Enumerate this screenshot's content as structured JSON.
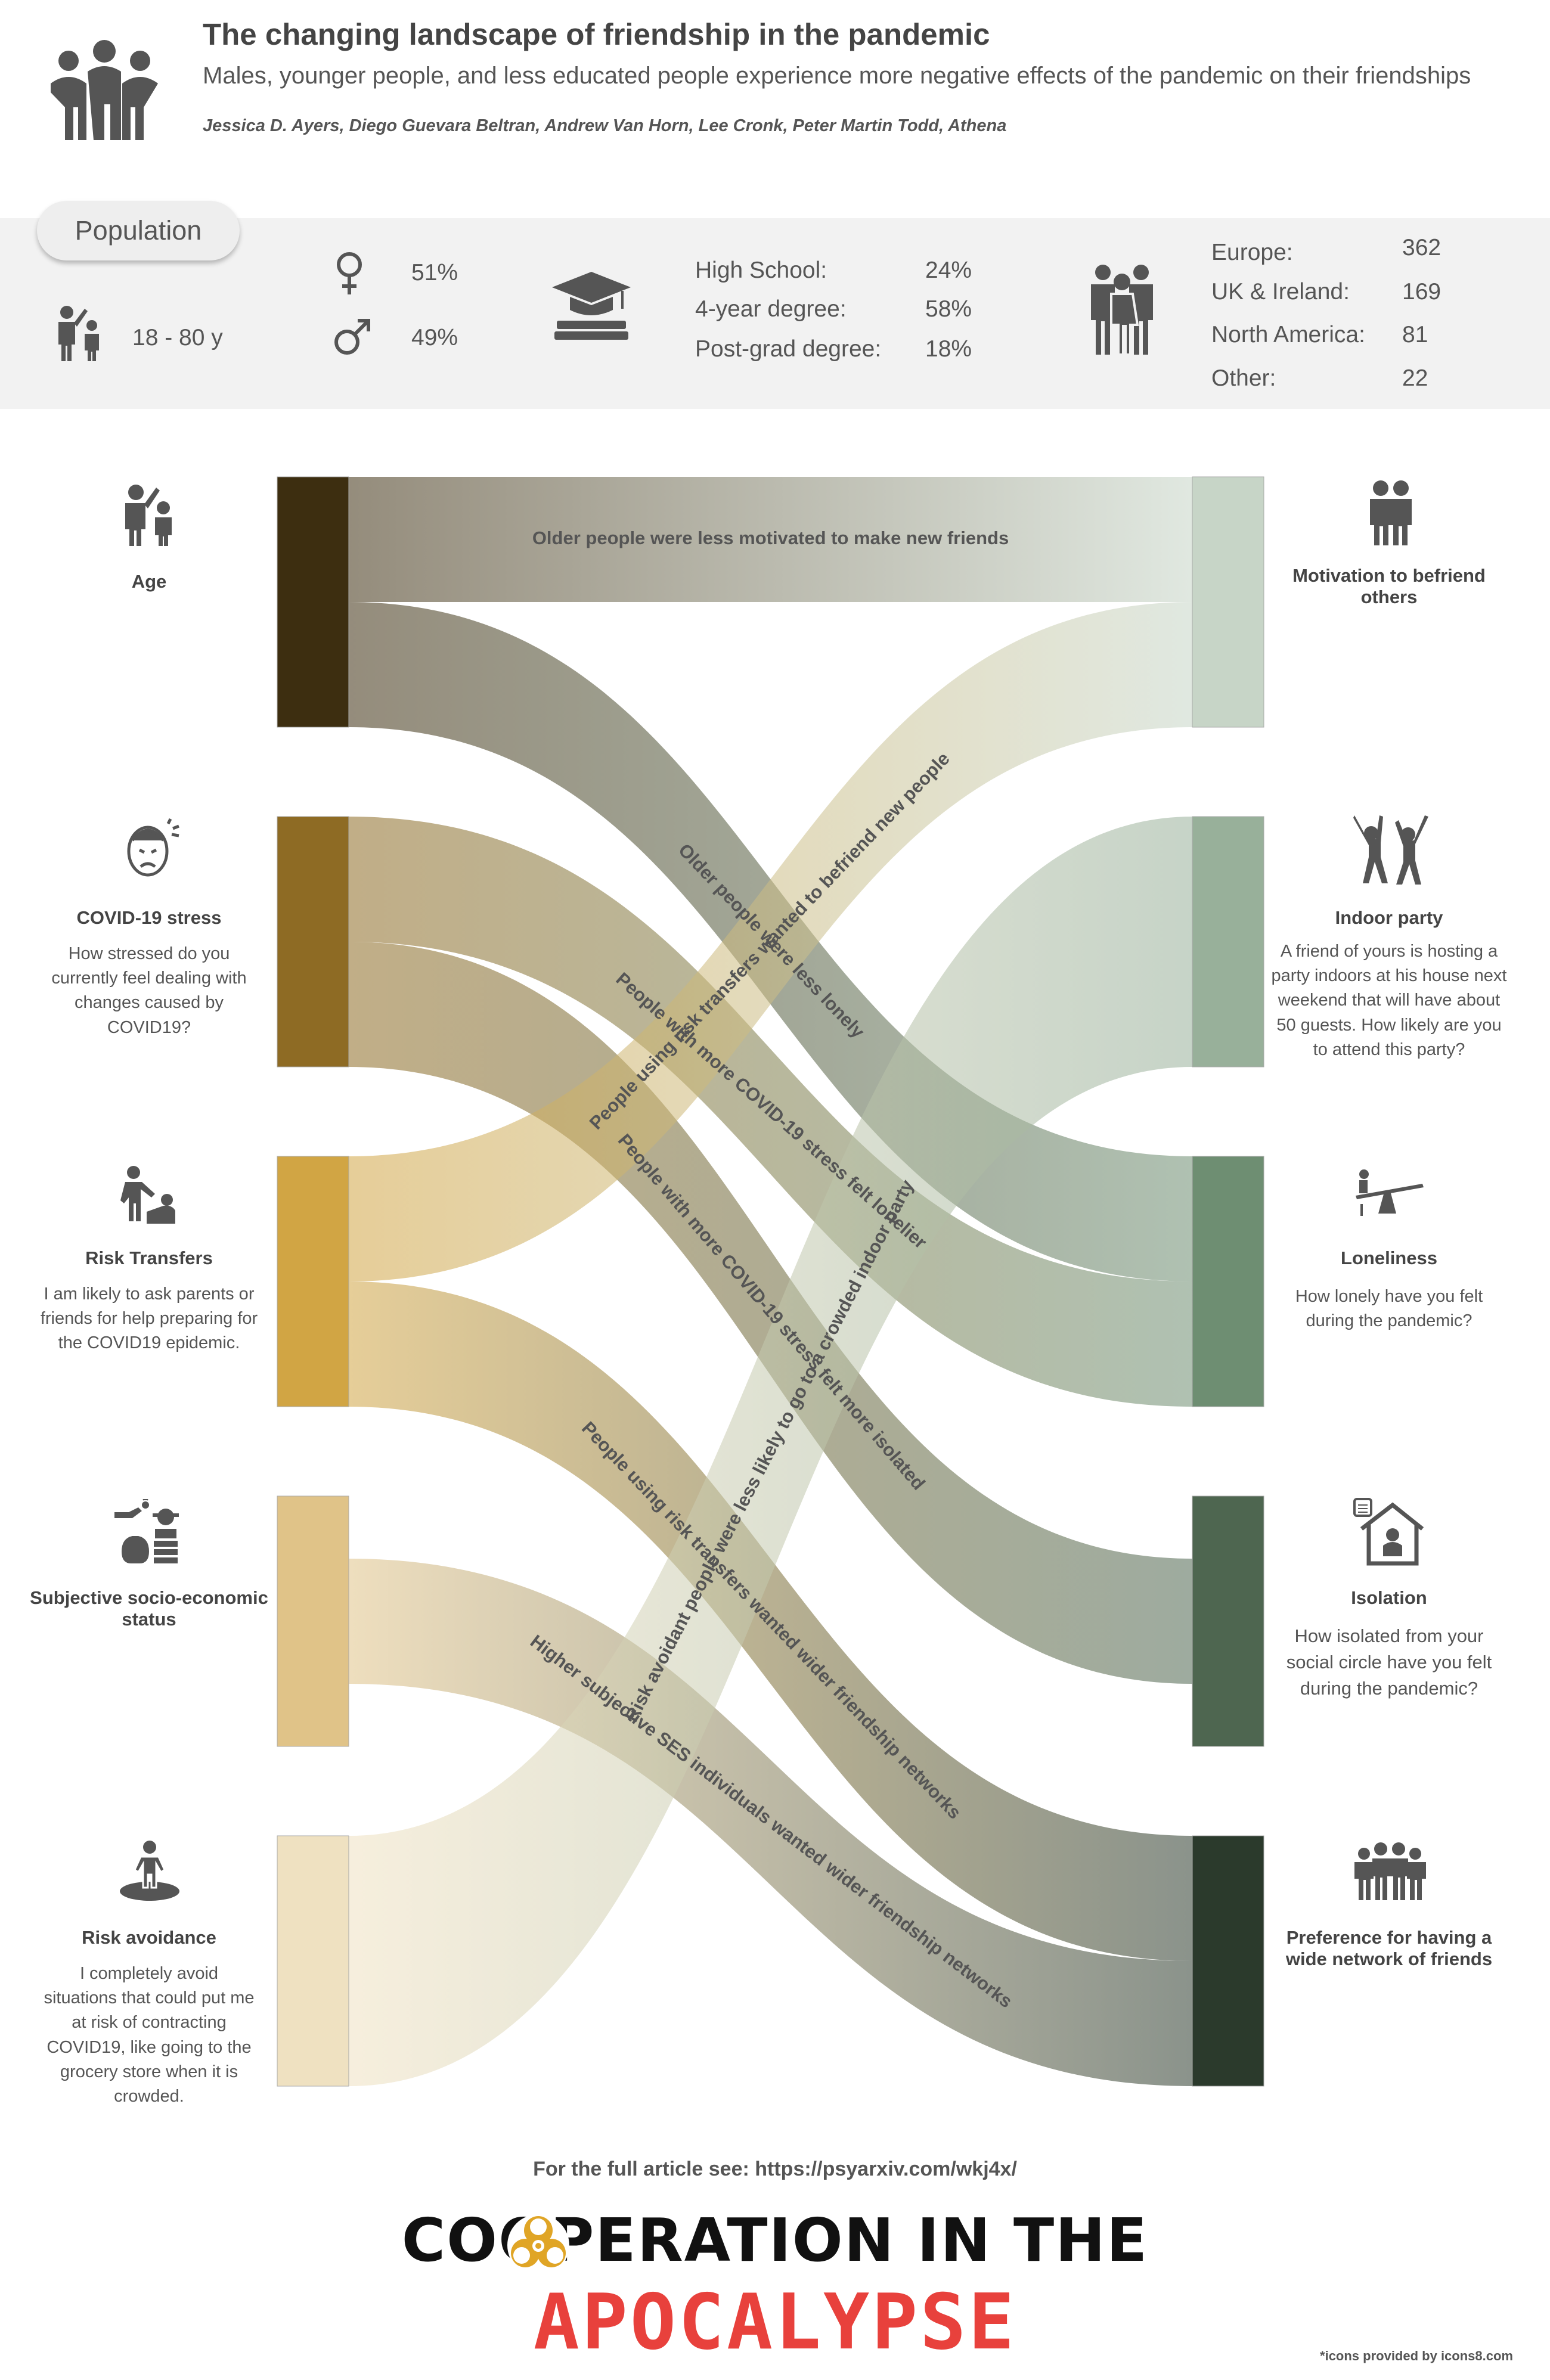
{
  "header": {
    "title": "The changing landscape of friendship in the pandemic",
    "subtitle": "Males, younger people, and less educated people experience more negative effects of the pandemic on their friendships",
    "authors": "Jessica D. Ayers, Diego Guevara Beltran, Andrew Van Horn, Lee Cronk, Peter Martin Todd, Athena",
    "icon": "friends-group-icon"
  },
  "population": {
    "label": "Population",
    "age_range": "18 - 80 y",
    "female_pct": "51%",
    "male_pct": "49%",
    "education": [
      {
        "label": "High School:",
        "value": "24%"
      },
      {
        "label": "4-year degree:",
        "value": "58%"
      },
      {
        "label": "Post-grad degree:",
        "value": "18%"
      }
    ],
    "regions": [
      {
        "label": "Europe:",
        "value": "362"
      },
      {
        "label": "UK & Ireland:",
        "value": "169"
      },
      {
        "label": "North America:",
        "value": "81"
      },
      {
        "label": "Other:",
        "value": "22"
      }
    ]
  },
  "left_nodes": [
    {
      "id": "age",
      "title": "Age",
      "question": "",
      "color": "#3d2e10",
      "icon": "age-icon"
    },
    {
      "id": "stress",
      "title": "COVID-19 stress",
      "question": "How stressed do you currently feel dealing with changes caused by COVID19?",
      "color": "#8e6b24",
      "icon": "stressed-face-icon"
    },
    {
      "id": "risk_transfers",
      "title": "Risk Transfers",
      "question": "I am likely to ask parents or friends for help preparing for the COVID19 epidemic.",
      "color": "#d1a544",
      "icon": "helping-hand-icon"
    },
    {
      "id": "ses",
      "title": "Subjective socio-economic status",
      "question": "",
      "color": "#e0c388",
      "icon": "money-status-icon"
    },
    {
      "id": "risk_avoidance",
      "title": "Risk avoidance",
      "question": "I completely avoid situations that could put me at risk of contracting COVID19, like going to the grocery store when it is crowded.",
      "color": "#efe1c1",
      "icon": "isolated-person-icon"
    }
  ],
  "right_nodes": [
    {
      "id": "motivation",
      "title": "Motivation to befriend others",
      "question": "",
      "color": "#c7d5c7",
      "icon": "hug-icon"
    },
    {
      "id": "indoor_party",
      "title": "Indoor party",
      "question": "A friend of yours is hosting a party indoors at his house next weekend that will have about 50 guests. How likely are you to attend this party?",
      "color": "#98b09a",
      "icon": "party-icon"
    },
    {
      "id": "loneliness",
      "title": "Loneliness",
      "question": "How lonely have you felt during the pandemic?",
      "color": "#6e8e72",
      "icon": "seesaw-icon"
    },
    {
      "id": "isolation",
      "title": "Isolation",
      "question": "How isolated from your social circle have you felt during the pandemic?",
      "color": "#4e6650",
      "icon": "home-isolation-icon"
    },
    {
      "id": "wide_network",
      "title": "Preference for having a wide network of friends",
      "question": "",
      "color": "#2b3a2c",
      "icon": "friends-network-icon"
    }
  ],
  "links": [
    {
      "source": "age",
      "target": "motivation",
      "label": "Older people were less motivated to make new friends"
    },
    {
      "source": "age",
      "target": "loneliness",
      "label": "Older people were less lonely"
    },
    {
      "source": "stress",
      "target": "loneliness",
      "label": "People with more COVID-19 stress felt lonelier"
    },
    {
      "source": "stress",
      "target": "isolation",
      "label": "People with more COVID-19 stress felt more isolated"
    },
    {
      "source": "risk_transfers",
      "target": "motivation",
      "label": "People using risk transfers wanted to befriend new people"
    },
    {
      "source": "risk_transfers",
      "target": "wide_network",
      "label": "People using risk transfers wanted wider friendship networks"
    },
    {
      "source": "ses",
      "target": "wide_network",
      "label": "Higher subjective SES individuals wanted wider friendship networks"
    },
    {
      "source": "risk_avoidance",
      "target": "indoor_party",
      "label": "Risk avoidant people were less likely to go to a crowded indoor party"
    }
  ],
  "footer": {
    "link_text": "For the full article see: https://psyarxiv.com/wkj4x/",
    "logo_line1": "COOPERATION IN THE",
    "logo_line2": "APOCALYPSE",
    "logo_icon": "biohazard-icon",
    "credit": "*icons provided by icons8.com"
  }
}
